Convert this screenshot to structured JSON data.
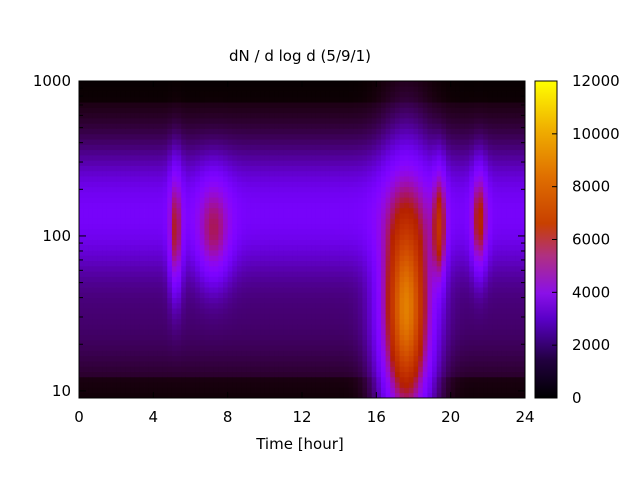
{
  "chart_data": {
    "type": "heatmap",
    "title": "dN / d log d (5/9/1)",
    "xlabel": "Time [hour]",
    "ylabel": "",
    "xlim": [
      0,
      24
    ],
    "ylim": [
      9,
      1000
    ],
    "y_scale": "log",
    "x_ticks": [
      "0",
      "4",
      "8",
      "12",
      "16",
      "20",
      "24"
    ],
    "x_tick_values": [
      0,
      4,
      8,
      12,
      16,
      20,
      24
    ],
    "y_ticks": [
      "10",
      "100",
      "1000"
    ],
    "y_tick_values": [
      10,
      100,
      1000
    ],
    "colorbar": {
      "range": [
        0,
        12000
      ],
      "ticks": [
        "0",
        "2000",
        "4000",
        "6000",
        "8000",
        "10000",
        "12000"
      ],
      "tick_values": [
        0,
        2000,
        4000,
        6000,
        8000,
        10000,
        12000
      ],
      "palette": "gnuplot"
    },
    "features": [
      {
        "t_start": 16.0,
        "t_end": 18.3,
        "d_low": 10,
        "d_high": 200,
        "peak_value": 10000,
        "peak_t": 17.6,
        "peak_d": 35
      },
      {
        "t_start": 5.0,
        "t_end": 5.4,
        "d_low": 60,
        "d_high": 200,
        "peak_value": 6000
      },
      {
        "t_start": 6.5,
        "t_end": 8.0,
        "d_low": 70,
        "d_high": 180,
        "peak_value": 5500
      },
      {
        "t_start": 19.2,
        "t_end": 19.6,
        "d_low": 70,
        "d_high": 200,
        "peak_value": 6500
      },
      {
        "t_start": 21.3,
        "t_end": 21.8,
        "d_low": 80,
        "d_high": 200,
        "peak_value": 6500
      }
    ]
  }
}
